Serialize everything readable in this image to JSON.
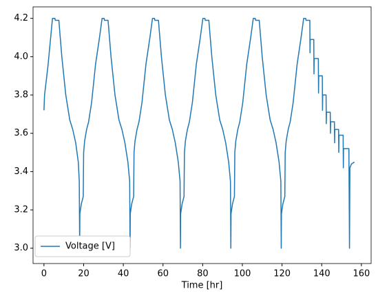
{
  "chart_data": {
    "type": "line",
    "xlabel": "Time [hr]",
    "x": [
      0,
      0.3,
      2,
      4.3,
      5.5,
      5.7,
      7.5,
      9,
      11,
      13,
      14.5,
      16,
      17.3,
      17.8,
      18,
      18.1,
      18.8,
      19.8,
      20.0,
      20.5,
      21.5,
      22.5,
      24,
      26,
      28,
      29.3,
      30.3,
      30.5,
      32.3,
      33.8,
      35.8,
      37.8,
      39.3,
      40.8,
      42.3,
      43.2,
      43.4,
      43.5,
      44.2,
      45.2,
      45.4,
      45.9,
      46.9,
      47.9,
      49.4,
      51.4,
      53.4,
      54.7,
      55.7,
      55.9,
      57.7,
      59.2,
      61.2,
      63.2,
      64.7,
      66.2,
      67.7,
      68.6,
      68.8,
      68.9,
      69.6,
      70.6,
      70.8,
      71.3,
      72.3,
      73.3,
      74.8,
      76.8,
      78.8,
      80.1,
      81.1,
      81.3,
      83.1,
      84.6,
      86.6,
      88.6,
      90.1,
      91.6,
      93.1,
      94.0,
      94.2,
      94.3,
      95.0,
      96.0,
      96.2,
      96.7,
      97.7,
      98.7,
      100.2,
      102.2,
      104.2,
      105.5,
      106.5,
      106.7,
      108.5,
      110.0,
      112.0,
      114.0,
      115.5,
      117.0,
      118.5,
      119.4,
      119.6,
      119.7,
      120.4,
      121.4,
      121.6,
      122.1,
      123.1,
      124.1,
      125.6,
      127.6,
      129.6,
      130.9,
      131.9,
      132.1,
      134,
      134.1,
      134.2,
      136,
      136.1,
      136.2,
      138.3,
      138.4,
      138.5,
      140.3,
      140.4,
      140.5,
      142.2,
      142.3,
      142.4,
      144.3,
      144.4,
      144.5,
      146.4,
      146.5,
      146.6,
      148.5,
      148.6,
      148.7,
      150.8,
      150.9,
      151,
      153.7,
      154,
      154.2,
      155,
      156.5
    ],
    "series": [
      {
        "name": "Voltage [V]",
        "color": "#1f77b4",
        "values": [
          3.72,
          3.8,
          3.95,
          4.2,
          4.2,
          4.19,
          4.19,
          4.0,
          3.8,
          3.67,
          3.62,
          3.55,
          3.45,
          3.35,
          3.0,
          3.18,
          3.23,
          3.27,
          3.5,
          3.56,
          3.62,
          3.66,
          3.76,
          3.96,
          4.1,
          4.2,
          4.2,
          4.19,
          4.19,
          4.0,
          3.8,
          3.67,
          3.62,
          3.55,
          3.45,
          3.35,
          3.0,
          3.18,
          3.23,
          3.27,
          3.5,
          3.56,
          3.62,
          3.66,
          3.76,
          3.96,
          4.1,
          4.2,
          4.2,
          4.19,
          4.19,
          4.0,
          3.8,
          3.67,
          3.62,
          3.55,
          3.45,
          3.35,
          3.0,
          3.18,
          3.23,
          3.27,
          3.5,
          3.56,
          3.62,
          3.66,
          3.76,
          3.96,
          4.1,
          4.2,
          4.2,
          4.19,
          4.19,
          4.0,
          3.8,
          3.67,
          3.62,
          3.55,
          3.45,
          3.35,
          3.0,
          3.18,
          3.23,
          3.27,
          3.5,
          3.56,
          3.62,
          3.66,
          3.76,
          3.96,
          4.1,
          4.2,
          4.2,
          4.19,
          4.19,
          4.0,
          3.8,
          3.67,
          3.62,
          3.55,
          3.45,
          3.35,
          3.0,
          3.18,
          3.23,
          3.27,
          3.5,
          3.56,
          3.62,
          3.66,
          3.76,
          3.96,
          4.1,
          4.2,
          4.2,
          4.19,
          4.19,
          4.02,
          4.09,
          4.09,
          3.91,
          3.99,
          3.99,
          3.81,
          3.9,
          3.9,
          3.72,
          3.8,
          3.8,
          3.65,
          3.71,
          3.71,
          3.6,
          3.66,
          3.66,
          3.55,
          3.62,
          3.62,
          3.5,
          3.59,
          3.59,
          3.42,
          3.52,
          3.52,
          3.0,
          3.42,
          3.44,
          3.45
        ]
      }
    ],
    "xlim": [
      -5.5,
      164.9
    ],
    "ylim": [
      2.92,
      4.26
    ],
    "xticks": [
      0,
      20,
      40,
      60,
      80,
      100,
      120,
      140,
      160
    ],
    "yticks": [
      {
        "value": 3,
        "label": "3.0"
      },
      3.2,
      3.4,
      3.6,
      3.8,
      {
        "value": 4,
        "label": "4.0"
      },
      4.2
    ],
    "grid": false,
    "legend": "lower left"
  }
}
